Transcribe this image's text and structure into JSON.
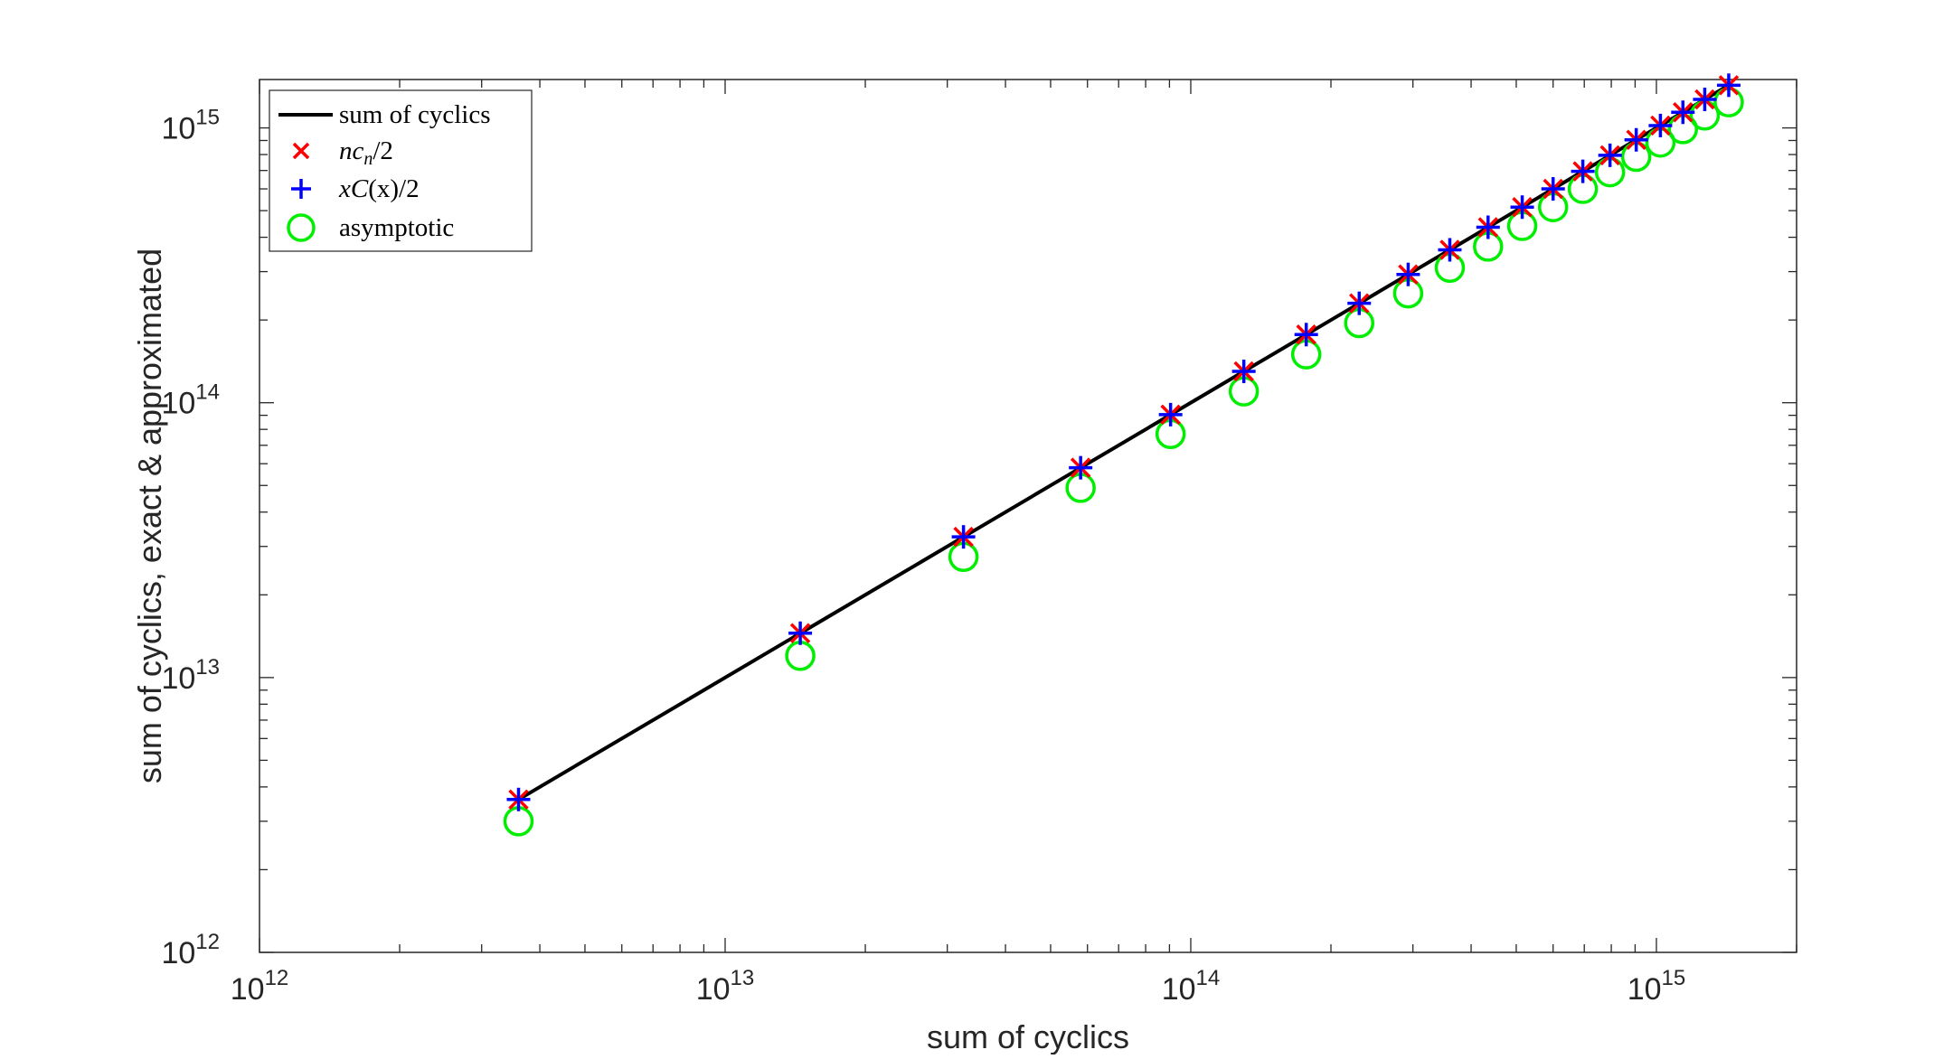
{
  "chart_data": {
    "type": "scatter",
    "xscale": "log",
    "yscale": "log",
    "xlim": [
      1000000000000.0,
      2000000000000000.0
    ],
    "ylim": [
      1000000000000.0,
      1500000000000000.0
    ],
    "xlabel": "sum of cyclics",
    "ylabel": "sum of cyclics, exact & approximated",
    "grid": false,
    "legend_position": "top-left",
    "xticks": [
      {
        "value": 1000000000000.0,
        "base": "10",
        "exp": "12"
      },
      {
        "value": 10000000000000.0,
        "base": "10",
        "exp": "13"
      },
      {
        "value": 100000000000000.0,
        "base": "10",
        "exp": "14"
      },
      {
        "value": 1000000000000000.0,
        "base": "10",
        "exp": "15"
      }
    ],
    "yticks": [
      {
        "value": 1000000000000.0,
        "base": "10",
        "exp": "12"
      },
      {
        "value": 10000000000000.0,
        "base": "10",
        "exp": "13"
      },
      {
        "value": 100000000000000.0,
        "base": "10",
        "exp": "14"
      },
      {
        "value": 1000000000000000.0,
        "base": "10",
        "exp": "15"
      }
    ],
    "x": [
      3600000000000.0,
      14500000000000.0,
      32500000000000.0,
      58000000000000.0,
      90500000000000.0,
      130000000000000.0,
      177000000000000.0,
      230000000000000.0,
      293000000000000.0,
      360000000000000.0,
      435000000000000.0,
      515000000000000.0,
      600000000000000.0,
      695000000000000.0,
      795000000000000.0,
      905000000000000.0,
      1020000000000000.0,
      1140000000000000.0,
      1270000000000000.0,
      1430000000000000.0
    ],
    "series": [
      {
        "name": "sum of cyclics",
        "marker": "line",
        "color": "#000000",
        "values": [
          3600000000000.0,
          14500000000000.0,
          32500000000000.0,
          58000000000000.0,
          90500000000000.0,
          130000000000000.0,
          177000000000000.0,
          230000000000000.0,
          293000000000000.0,
          360000000000000.0,
          435000000000000.0,
          515000000000000.0,
          600000000000000.0,
          695000000000000.0,
          795000000000000.0,
          905000000000000.0,
          1020000000000000.0,
          1140000000000000.0,
          1270000000000000.0,
          1430000000000000.0
        ]
      },
      {
        "name": "nc_n/2",
        "marker": "x",
        "color": "#ff0000",
        "values": [
          3600000000000.0,
          14500000000000.0,
          32500000000000.0,
          58000000000000.0,
          90500000000000.0,
          130000000000000.0,
          177000000000000.0,
          230000000000000.0,
          293000000000000.0,
          360000000000000.0,
          435000000000000.0,
          515000000000000.0,
          600000000000000.0,
          695000000000000.0,
          795000000000000.0,
          905000000000000.0,
          1020000000000000.0,
          1140000000000000.0,
          1270000000000000.0,
          1430000000000000.0
        ]
      },
      {
        "name": "xC(x)/2",
        "marker": "plus",
        "color": "#0000ff",
        "values": [
          3600000000000.0,
          14500000000000.0,
          32500000000000.0,
          58000000000000.0,
          90500000000000.0,
          130000000000000.0,
          177000000000000.0,
          230000000000000.0,
          293000000000000.0,
          360000000000000.0,
          435000000000000.0,
          515000000000000.0,
          600000000000000.0,
          695000000000000.0,
          795000000000000.0,
          905000000000000.0,
          1020000000000000.0,
          1140000000000000.0,
          1270000000000000.0,
          1430000000000000.0
        ]
      },
      {
        "name": "asymptotic",
        "marker": "circle",
        "color": "#00ee00",
        "values": [
          3000000000000.0,
          12000000000000.0,
          27500000000000.0,
          49000000000000.0,
          77000000000000.0,
          110000000000000.0,
          150000000000000.0,
          195000000000000.0,
          250000000000000.0,
          310000000000000.0,
          370000000000000.0,
          440000000000000.0,
          515000000000000.0,
          600000000000000.0,
          690000000000000.0,
          785000000000000.0,
          885000000000000.0,
          990000000000000.0,
          1110000000000000.0,
          1240000000000000.0
        ]
      }
    ]
  },
  "legend": {
    "entries": [
      {
        "italic_main": "",
        "text": "sum of cyclics",
        "sub": "",
        "tail": ""
      },
      {
        "italic_main": "nc",
        "text": "",
        "sub": "n",
        "tail": "/2"
      },
      {
        "italic_main": "xC",
        "text": "",
        "sub": "",
        "tail": "(x)/2"
      },
      {
        "italic_main": "",
        "text": "asymptotic",
        "sub": "",
        "tail": ""
      }
    ]
  }
}
